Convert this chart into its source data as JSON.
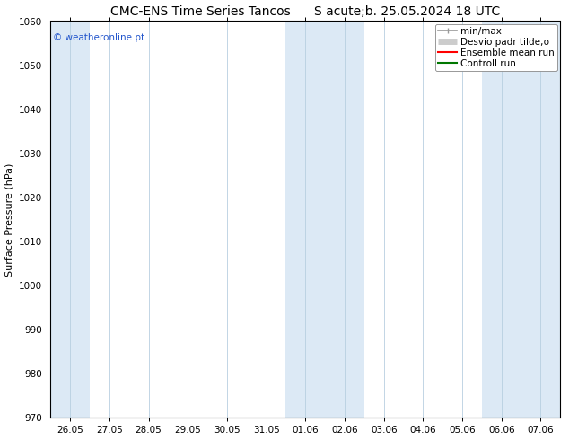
{
  "title_left": "CMC-ENS Time Series Tancos",
  "title_right": "S acute;b. 25.05.2024 18 UTC",
  "ylabel": "Surface Pressure (hPa)",
  "ylim": [
    970,
    1060
  ],
  "yticks": [
    970,
    980,
    990,
    1000,
    1010,
    1020,
    1030,
    1040,
    1050,
    1060
  ],
  "xlabels": [
    "26.05",
    "27.05",
    "28.05",
    "29.05",
    "30.05",
    "31.05",
    "01.06",
    "02.06",
    "03.06",
    "04.06",
    "05.06",
    "06.06",
    "07.06"
  ],
  "shaded_cols": [
    0,
    6,
    7,
    11,
    12
  ],
  "shade_color": "#dce9f5",
  "plot_bg": "#ffffff",
  "grid_color": "#b8cfe0",
  "legend_items": [
    {
      "label": "min/max",
      "color": "#999999",
      "lw": 1.2
    },
    {
      "label": "Desvio padr tilde;o",
      "color": "#cccccc",
      "lw": 5
    },
    {
      "label": "Ensemble mean run",
      "color": "#ff0000",
      "lw": 1.5
    },
    {
      "label": "Controll run",
      "color": "#007700",
      "lw": 1.5
    }
  ],
  "watermark": "© weatheronline.pt",
  "title_fontsize": 10,
  "axis_fontsize": 8,
  "tick_fontsize": 7.5,
  "legend_fontsize": 7.5
}
